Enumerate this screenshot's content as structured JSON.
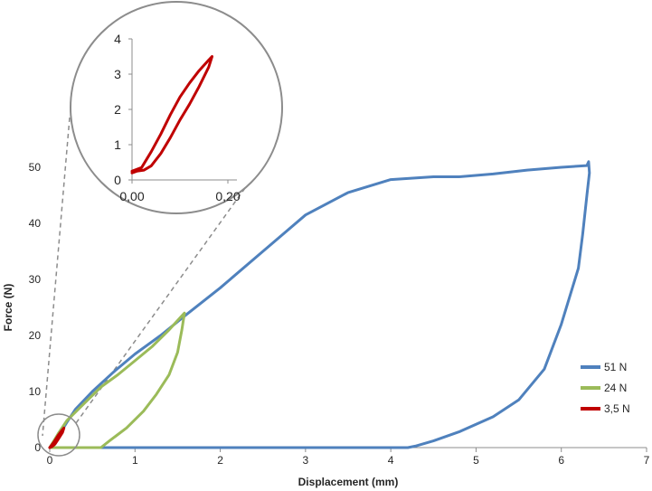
{
  "chart_data": [
    {
      "type": "line",
      "xlabel": "Displacement (mm)",
      "ylabel": "Force (N)",
      "xlim": [
        0,
        7
      ],
      "ylim": [
        0,
        50
      ],
      "x_ticks": [
        "0",
        "1",
        "2",
        "3",
        "4",
        "5",
        "6",
        "7"
      ],
      "y_ticks": [
        "0",
        "10",
        "20",
        "30",
        "40",
        "50"
      ],
      "legend_position": "right",
      "series": [
        {
          "name": "51 N",
          "color": "#4F81BD",
          "points": [
            [
              0.0,
              0.0
            ],
            [
              0.1,
              2.0
            ],
            [
              0.2,
              4.5
            ],
            [
              0.3,
              6.8
            ],
            [
              0.5,
              10.0
            ],
            [
              0.75,
              13.5
            ],
            [
              1.0,
              16.7
            ],
            [
              1.3,
              20.0
            ],
            [
              1.6,
              23.7
            ],
            [
              2.0,
              28.5
            ],
            [
              2.5,
              35.0
            ],
            [
              3.0,
              41.5
            ],
            [
              3.5,
              45.5
            ],
            [
              4.0,
              47.8
            ],
            [
              4.5,
              48.3
            ],
            [
              4.8,
              48.3
            ],
            [
              5.2,
              48.8
            ],
            [
              5.6,
              49.5
            ],
            [
              6.0,
              50.0
            ],
            [
              6.3,
              50.3
            ],
            [
              6.32,
              51.0
            ],
            [
              6.33,
              49.0
            ],
            [
              6.3,
              45.0
            ],
            [
              6.25,
              38.0
            ],
            [
              6.2,
              32.0
            ],
            [
              6.0,
              22.0
            ],
            [
              5.8,
              14.0
            ],
            [
              5.5,
              8.5
            ],
            [
              5.2,
              5.5
            ],
            [
              4.8,
              2.8
            ],
            [
              4.5,
              1.2
            ],
            [
              4.3,
              0.3
            ],
            [
              4.2,
              0.0
            ],
            [
              3.0,
              0.0
            ],
            [
              2.0,
              0.0
            ],
            [
              1.0,
              0.0
            ],
            [
              0.0,
              0.0
            ]
          ]
        },
        {
          "name": "24 N",
          "color": "#9BBB59",
          "points": [
            [
              0.0,
              0.0
            ],
            [
              0.1,
              2.5
            ],
            [
              0.2,
              4.8
            ],
            [
              0.4,
              7.8
            ],
            [
              0.6,
              10.8
            ],
            [
              0.8,
              13.0
            ],
            [
              1.0,
              15.5
            ],
            [
              1.2,
              18.0
            ],
            [
              1.4,
              21.0
            ],
            [
              1.55,
              23.5
            ],
            [
              1.58,
              24.0
            ],
            [
              1.55,
              21.0
            ],
            [
              1.5,
              17.0
            ],
            [
              1.4,
              13.0
            ],
            [
              1.25,
              9.5
            ],
            [
              1.1,
              6.5
            ],
            [
              0.9,
              3.5
            ],
            [
              0.7,
              1.2
            ],
            [
              0.6,
              0.0
            ],
            [
              0.3,
              0.0
            ],
            [
              0.0,
              0.0
            ]
          ]
        },
        {
          "name": "3,5 N",
          "color": "#C00000",
          "points": [
            [
              0.0,
              0.0
            ],
            [
              0.05,
              1.0
            ],
            [
              0.1,
              2.2
            ],
            [
              0.15,
              3.2
            ],
            [
              0.167,
              3.5
            ],
            [
              0.15,
              2.7
            ],
            [
              0.1,
              1.5
            ],
            [
              0.06,
              0.6
            ],
            [
              0.03,
              0.2
            ],
            [
              0.0,
              0.0
            ]
          ]
        }
      ]
    },
    {
      "type": "line",
      "inset": true,
      "xlim": [
        0.0,
        0.2
      ],
      "ylim": [
        0,
        4
      ],
      "x_ticks": [
        "0,00",
        "0,20"
      ],
      "y_ticks": [
        "0",
        "1",
        "2",
        "3",
        "4"
      ],
      "series": [
        {
          "color": "#C00000",
          "points": [
            [
              0.0,
              0.25
            ],
            [
              0.01,
              0.3
            ],
            [
              0.02,
              0.35
            ],
            [
              0.04,
              0.8
            ],
            [
              0.06,
              1.3
            ],
            [
              0.08,
              1.85
            ],
            [
              0.1,
              2.35
            ],
            [
              0.12,
              2.75
            ],
            [
              0.14,
              3.1
            ],
            [
              0.16,
              3.4
            ],
            [
              0.167,
              3.5
            ],
            [
              0.16,
              3.2
            ],
            [
              0.14,
              2.65
            ],
            [
              0.12,
              2.15
            ],
            [
              0.1,
              1.7
            ],
            [
              0.08,
              1.2
            ],
            [
              0.06,
              0.75
            ],
            [
              0.04,
              0.4
            ],
            [
              0.025,
              0.28
            ],
            [
              0.01,
              0.25
            ],
            [
              0.0,
              0.2
            ]
          ]
        }
      ]
    }
  ]
}
